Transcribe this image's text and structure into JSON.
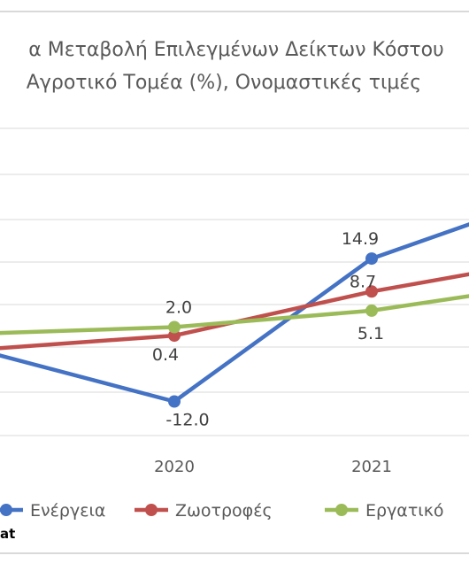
{
  "chart_data": {
    "type": "line",
    "title_line1": "α Μεταβολή Επιλεγμένων Δείκτων Κόστου",
    "title_line2": "Αγροτικό Τομέα (%), Ονομαστικές τιμές",
    "categories": [
      "",
      "2020",
      "2021",
      ""
    ],
    "series": [
      {
        "name": "Ενέργεια",
        "color": "#4472c4",
        "values": [
          null,
          -12.0,
          14.9,
          null
        ],
        "labels": [
          "",
          "-12.0",
          "14.9",
          ""
        ]
      },
      {
        "name": "Ζωοτροφές",
        "color": "#c0504d",
        "values": [
          null,
          0.4,
          8.7,
          null
        ],
        "labels": [
          "",
          "0.4",
          "8.7",
          ""
        ]
      },
      {
        "name": "Εργατικό",
        "color": "#9bbb59",
        "values": [
          null,
          2.0,
          5.1,
          null
        ],
        "labels": [
          "",
          "2.0",
          "5.1",
          ""
        ]
      }
    ],
    "grid": true,
    "legend": "bottom",
    "source_fragment": "at"
  }
}
